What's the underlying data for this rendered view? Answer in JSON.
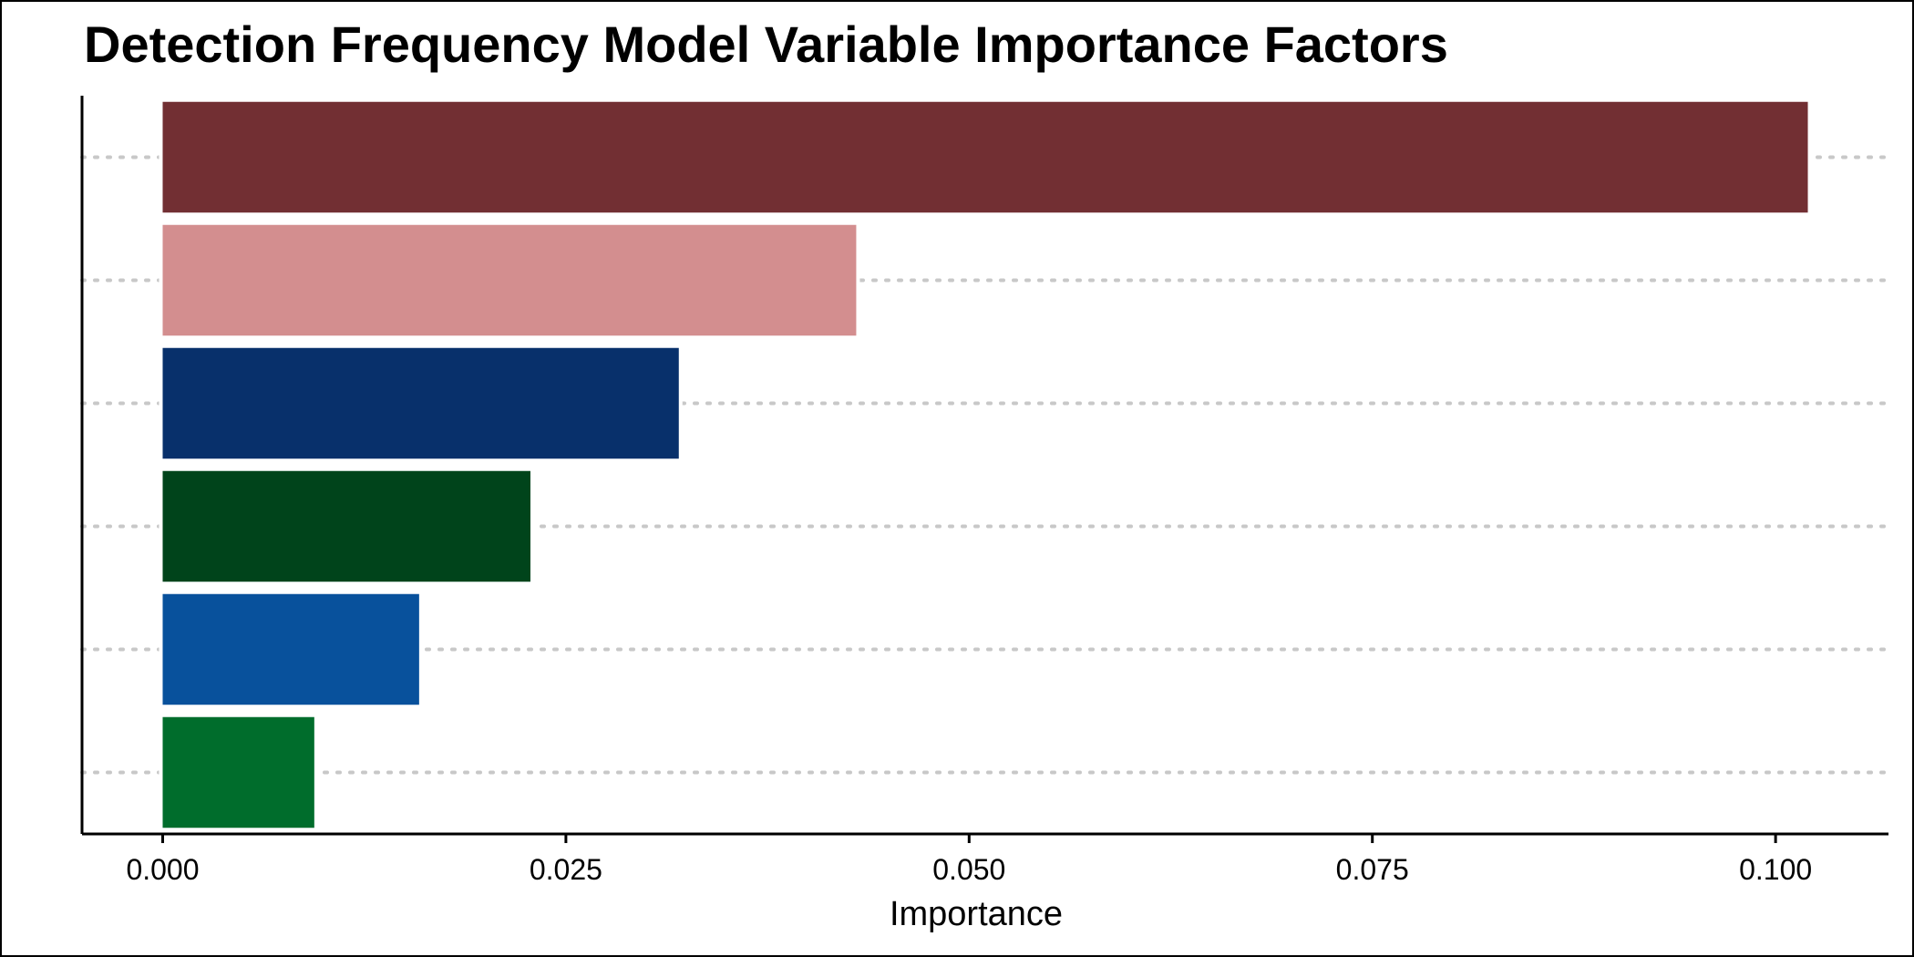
{
  "chart_data": {
    "type": "bar",
    "orientation": "horizontal",
    "title": "Detection Frequency Model Variable Importance Factors",
    "xlabel": "Importance",
    "ylabel": "",
    "xlim": [
      -0.005,
      0.107
    ],
    "x_ticks": [
      0.0,
      0.025,
      0.05,
      0.075,
      0.1
    ],
    "x_tick_labels": [
      "0.000",
      "0.025",
      "0.050",
      "0.075",
      "0.100"
    ],
    "y_tick_labels_visible": false,
    "grid": "horizontal dotted",
    "legend": "none",
    "bars": [
      {
        "value": 0.102,
        "color": "#722F33"
      },
      {
        "value": 0.043,
        "color": "#D38E8F"
      },
      {
        "value": 0.032,
        "color": "#08306B"
      },
      {
        "value": 0.0228,
        "color": "#00441B"
      },
      {
        "value": 0.0159,
        "color": "#08519C"
      },
      {
        "value": 0.0094,
        "color": "#006D2C"
      }
    ]
  }
}
